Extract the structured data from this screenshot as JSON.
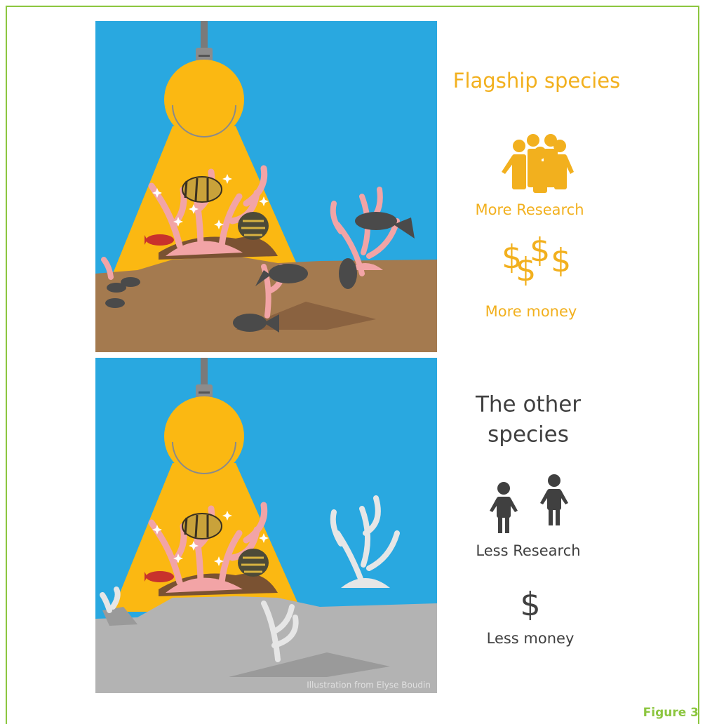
{
  "panels": [
    {
      "heading": [
        "Flagship species"
      ],
      "research_label": "More Research",
      "money_symbols": [
        "$",
        "$",
        "$",
        "$"
      ],
      "money_label": "More money"
    },
    {
      "heading": [
        "The other",
        "species"
      ],
      "research_label": "Less Research",
      "money_symbols": [
        "$"
      ],
      "money_label": "Less money"
    }
  ],
  "credit": "Illustration from Elyse Boudin",
  "caption": "Figure 3"
}
